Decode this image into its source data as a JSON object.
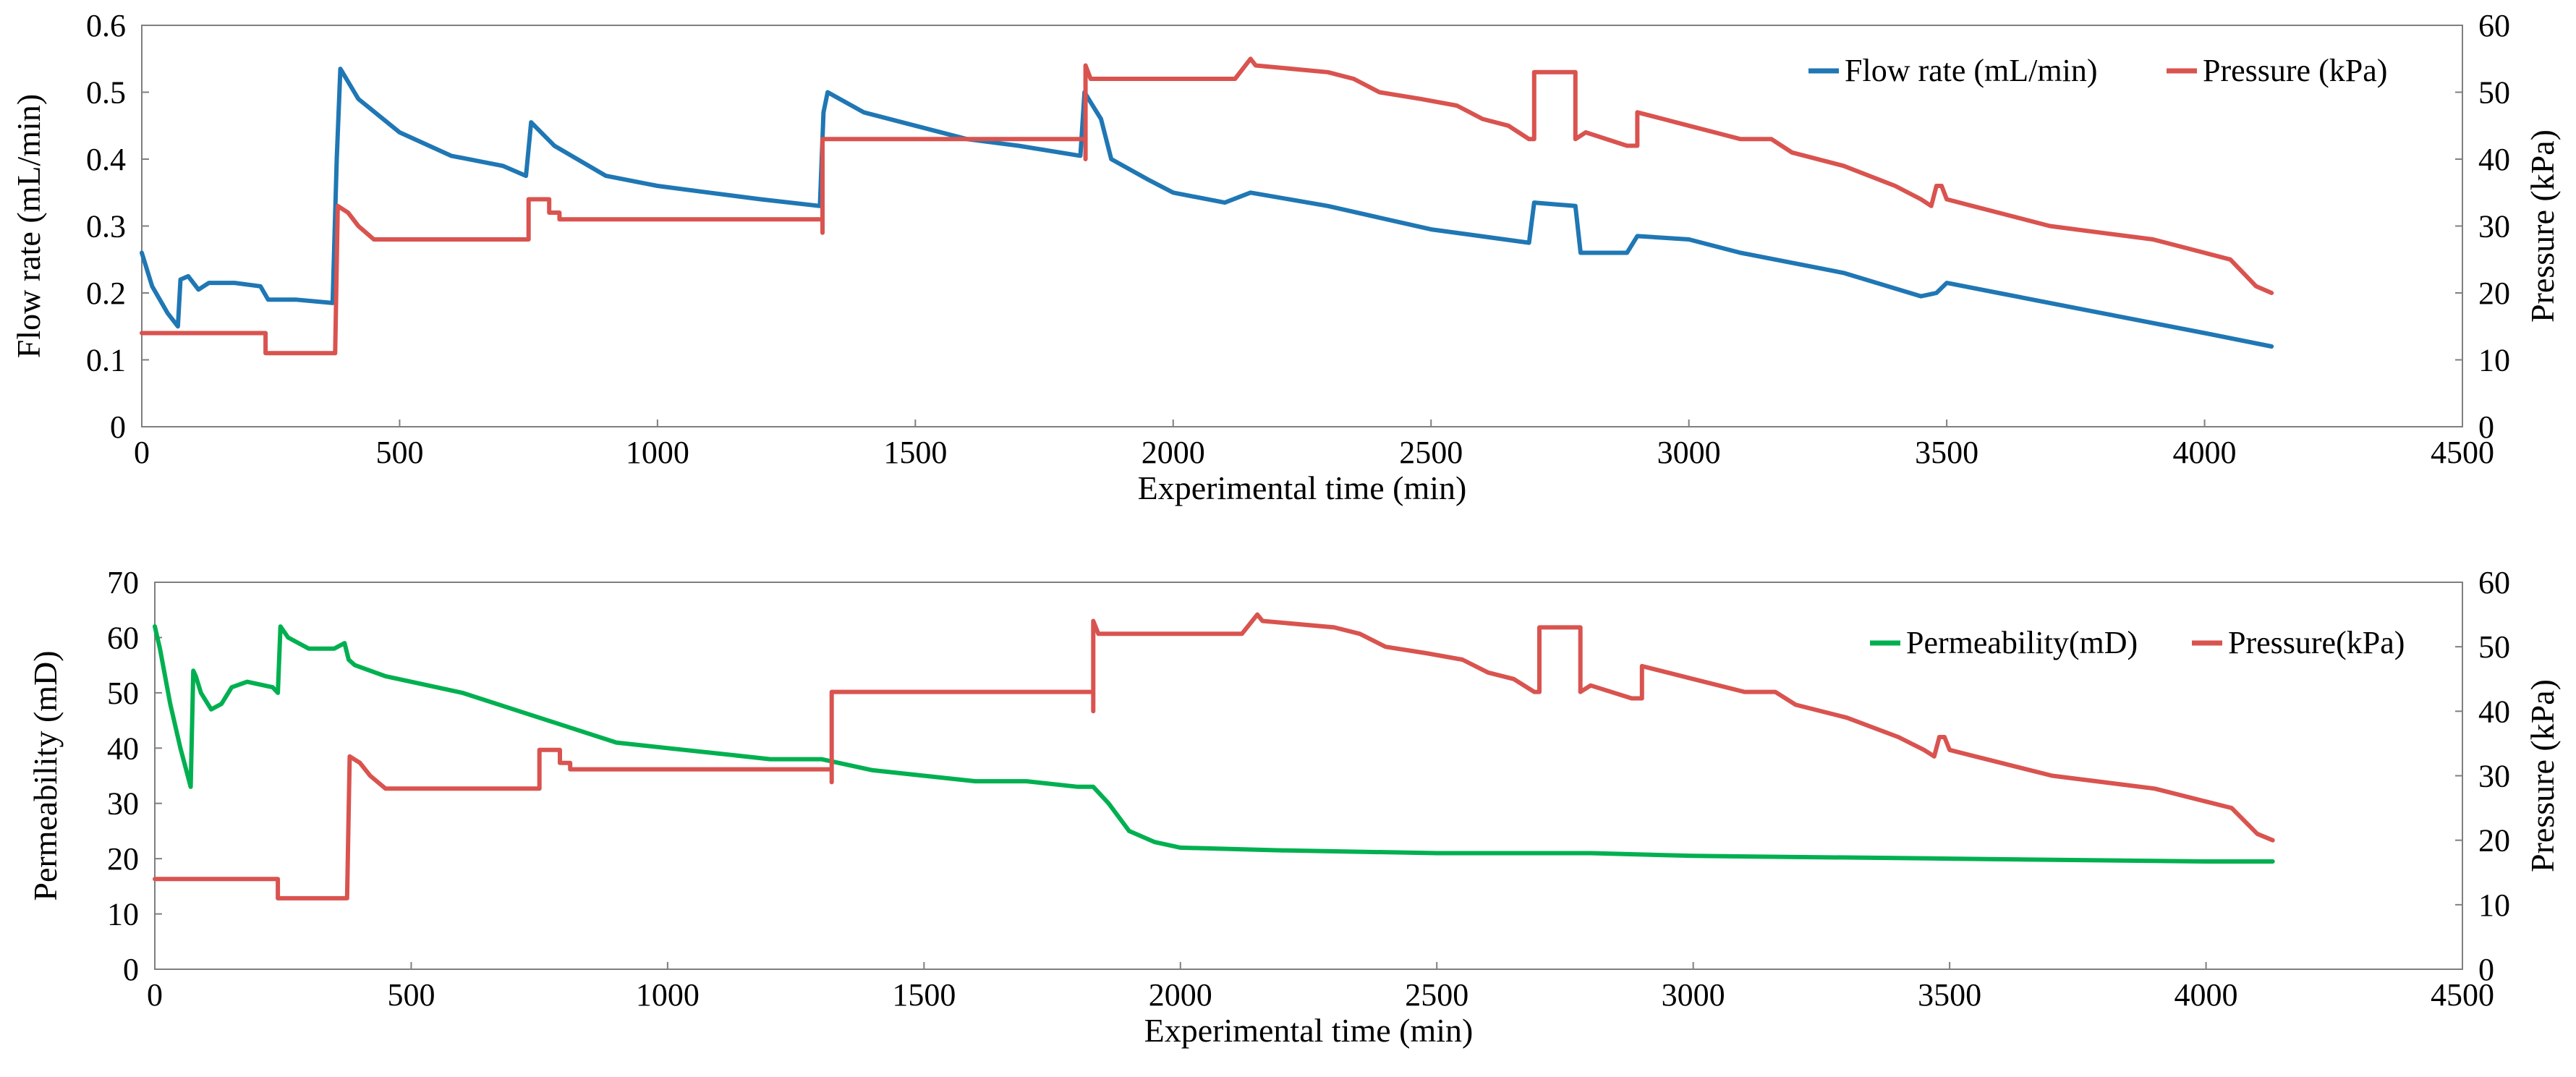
{
  "chart_data": [
    {
      "type": "line",
      "xlabel": "Experimental time (min)",
      "ylabel": "Flow rate (mL/min)",
      "y2label": "Pressure (kPa)",
      "xlim": [
        0,
        4500
      ],
      "ylim": [
        0,
        0.6
      ],
      "y2lim": [
        0,
        60
      ],
      "x_ticks": [
        "0",
        "500",
        "1000",
        "1500",
        "2000",
        "2500",
        "3000",
        "3500",
        "4000",
        "4500"
      ],
      "y_ticks": [
        "0",
        "0.1",
        "0.2",
        "0.3",
        "0.4",
        "0.5",
        "0.6"
      ],
      "y2_ticks": [
        "0",
        "10",
        "20",
        "30",
        "40",
        "50",
        "60"
      ],
      "legend_position": "top-right",
      "series": [
        {
          "name": "Flow rate (mL/min)",
          "axis": "left",
          "color": "#1f77b4",
          "points": [
            [
              0,
              0.26
            ],
            [
              20,
              0.21
            ],
            [
              50,
              0.17
            ],
            [
              70,
              0.15
            ],
            [
              75,
              0.22
            ],
            [
              90,
              0.225
            ],
            [
              110,
              0.205
            ],
            [
              130,
              0.215
            ],
            [
              180,
              0.215
            ],
            [
              230,
              0.21
            ],
            [
              245,
              0.19
            ],
            [
              300,
              0.19
            ],
            [
              370,
              0.185
            ],
            [
              378,
              0.4
            ],
            [
              385,
              0.535
            ],
            [
              420,
              0.49
            ],
            [
              500,
              0.44
            ],
            [
              600,
              0.405
            ],
            [
              700,
              0.39
            ],
            [
              745,
              0.375
            ],
            [
              755,
              0.455
            ],
            [
              800,
              0.42
            ],
            [
              900,
              0.375
            ],
            [
              1000,
              0.36
            ],
            [
              1100,
              0.35
            ],
            [
              1200,
              0.34
            ],
            [
              1315,
              0.33
            ],
            [
              1322,
              0.47
            ],
            [
              1330,
              0.5
            ],
            [
              1400,
              0.47
            ],
            [
              1500,
              0.45
            ],
            [
              1600,
              0.43
            ],
            [
              1700,
              0.42
            ],
            [
              1820,
              0.405
            ],
            [
              1828,
              0.5
            ],
            [
              1840,
              0.485
            ],
            [
              1860,
              0.46
            ],
            [
              1880,
              0.4
            ],
            [
              1950,
              0.37
            ],
            [
              2000,
              0.35
            ],
            [
              2100,
              0.335
            ],
            [
              2150,
              0.35
            ],
            [
              2300,
              0.33
            ],
            [
              2500,
              0.295
            ],
            [
              2690,
              0.275
            ],
            [
              2700,
              0.335
            ],
            [
              2780,
              0.33
            ],
            [
              2790,
              0.26
            ],
            [
              2880,
              0.26
            ],
            [
              2900,
              0.285
            ],
            [
              3000,
              0.28
            ],
            [
              3100,
              0.26
            ],
            [
              3300,
              0.23
            ],
            [
              3450,
              0.195
            ],
            [
              3480,
              0.2
            ],
            [
              3500,
              0.215
            ],
            [
              3600,
              0.2
            ],
            [
              3800,
              0.17
            ],
            [
              4000,
              0.14
            ],
            [
              4130,
              0.12
            ]
          ]
        },
        {
          "name": "Pressure (kPa)",
          "axis": "right",
          "color": "#d9534f",
          "points": [
            [
              0,
              14
            ],
            [
              240,
              14
            ],
            [
              240,
              11
            ],
            [
              375,
              11
            ],
            [
              380,
              33
            ],
            [
              400,
              32
            ],
            [
              420,
              30
            ],
            [
              450,
              28
            ],
            [
              750,
              28
            ],
            [
              750,
              34
            ],
            [
              790,
              34
            ],
            [
              790,
              32
            ],
            [
              810,
              32
            ],
            [
              810,
              31
            ],
            [
              1320,
              31
            ],
            [
              1320,
              29
            ],
            [
              1320,
              43
            ],
            [
              1830,
              43
            ],
            [
              1830,
              40
            ],
            [
              1830,
              54
            ],
            [
              1840,
              52
            ],
            [
              2120,
              52
            ],
            [
              2150,
              55
            ],
            [
              2160,
              54
            ],
            [
              2300,
              53
            ],
            [
              2350,
              52
            ],
            [
              2400,
              50
            ],
            [
              2480,
              49
            ],
            [
              2550,
              48
            ],
            [
              2600,
              46
            ],
            [
              2650,
              45
            ],
            [
              2690,
              43
            ],
            [
              2700,
              43
            ],
            [
              2700,
              53
            ],
            [
              2780,
              53
            ],
            [
              2780,
              43
            ],
            [
              2800,
              44
            ],
            [
              2880,
              42
            ],
            [
              2900,
              42
            ],
            [
              2900,
              47
            ],
            [
              2950,
              46
            ],
            [
              3000,
              45
            ],
            [
              3050,
              44
            ],
            [
              3100,
              43
            ],
            [
              3160,
              43
            ],
            [
              3200,
              41
            ],
            [
              3300,
              39
            ],
            [
              3400,
              36
            ],
            [
              3450,
              34
            ],
            [
              3470,
              33
            ],
            [
              3480,
              36
            ],
            [
              3490,
              36
            ],
            [
              3500,
              34
            ],
            [
              3550,
              33
            ],
            [
              3600,
              32
            ],
            [
              3700,
              30
            ],
            [
              3800,
              29
            ],
            [
              3900,
              28
            ],
            [
              4000,
              26
            ],
            [
              4050,
              25
            ],
            [
              4100,
              21
            ],
            [
              4130,
              20
            ]
          ]
        }
      ]
    },
    {
      "type": "line",
      "xlabel": "Experimental time (min)",
      "ylabel": "Permeability (mD)",
      "y2label": "Pressure (kPa)",
      "xlim": [
        0,
        4500
      ],
      "ylim": [
        0,
        70
      ],
      "y2lim": [
        0,
        60
      ],
      "x_ticks": [
        "0",
        "500",
        "1000",
        "1500",
        "2000",
        "2500",
        "3000",
        "3500",
        "4000",
        "4500"
      ],
      "y_ticks": [
        "0",
        "10",
        "20",
        "30",
        "40",
        "50",
        "60",
        "70"
      ],
      "y2_ticks": [
        "0",
        "10",
        "20",
        "30",
        "40",
        "50",
        "60"
      ],
      "legend_position": "top-right",
      "series": [
        {
          "name": "Permeability(mD)",
          "axis": "left",
          "color": "#00b050",
          "points": [
            [
              0,
              62
            ],
            [
              10,
              58
            ],
            [
              30,
              48
            ],
            [
              50,
              40
            ],
            [
              70,
              33
            ],
            [
              75,
              54
            ],
            [
              80,
              53
            ],
            [
              90,
              50
            ],
            [
              110,
              47
            ],
            [
              130,
              48
            ],
            [
              150,
              51
            ],
            [
              180,
              52
            ],
            [
              230,
              51
            ],
            [
              240,
              50
            ],
            [
              245,
              62
            ],
            [
              260,
              60
            ],
            [
              300,
              58
            ],
            [
              350,
              58
            ],
            [
              370,
              59
            ],
            [
              378,
              56
            ],
            [
              390,
              55
            ],
            [
              450,
              53
            ],
            [
              500,
              52
            ],
            [
              600,
              50
            ],
            [
              700,
              47
            ],
            [
              800,
              44
            ],
            [
              900,
              41
            ],
            [
              1000,
              40
            ],
            [
              1100,
              39
            ],
            [
              1200,
              38
            ],
            [
              1300,
              38
            ],
            [
              1400,
              36
            ],
            [
              1500,
              35
            ],
            [
              1600,
              34
            ],
            [
              1700,
              34
            ],
            [
              1800,
              33
            ],
            [
              1830,
              33
            ],
            [
              1860,
              30
            ],
            [
              1900,
              25
            ],
            [
              1950,
              23
            ],
            [
              2000,
              22
            ],
            [
              2200,
              21.5
            ],
            [
              2500,
              21
            ],
            [
              2800,
              21
            ],
            [
              3000,
              20.5
            ],
            [
              3500,
              20
            ],
            [
              4000,
              19.5
            ],
            [
              4130,
              19.5
            ]
          ]
        },
        {
          "name": "Pressure(kPa)",
          "axis": "right",
          "color": "#d9534f",
          "points": [
            [
              0,
              14
            ],
            [
              240,
              14
            ],
            [
              240,
              11
            ],
            [
              375,
              11
            ],
            [
              380,
              33
            ],
            [
              400,
              32
            ],
            [
              420,
              30
            ],
            [
              450,
              28
            ],
            [
              750,
              28
            ],
            [
              750,
              34
            ],
            [
              790,
              34
            ],
            [
              790,
              32
            ],
            [
              810,
              32
            ],
            [
              810,
              31
            ],
            [
              1320,
              31
            ],
            [
              1320,
              29
            ],
            [
              1320,
              43
            ],
            [
              1830,
              43
            ],
            [
              1830,
              40
            ],
            [
              1830,
              54
            ],
            [
              1840,
              52
            ],
            [
              2120,
              52
            ],
            [
              2150,
              55
            ],
            [
              2160,
              54
            ],
            [
              2300,
              53
            ],
            [
              2350,
              52
            ],
            [
              2400,
              50
            ],
            [
              2480,
              49
            ],
            [
              2550,
              48
            ],
            [
              2600,
              46
            ],
            [
              2650,
              45
            ],
            [
              2690,
              43
            ],
            [
              2700,
              43
            ],
            [
              2700,
              53
            ],
            [
              2780,
              53
            ],
            [
              2780,
              43
            ],
            [
              2800,
              44
            ],
            [
              2880,
              42
            ],
            [
              2900,
              42
            ],
            [
              2900,
              47
            ],
            [
              2950,
              46
            ],
            [
              3000,
              45
            ],
            [
              3050,
              44
            ],
            [
              3100,
              43
            ],
            [
              3160,
              43
            ],
            [
              3200,
              41
            ],
            [
              3300,
              39
            ],
            [
              3400,
              36
            ],
            [
              3450,
              34
            ],
            [
              3470,
              33
            ],
            [
              3480,
              36
            ],
            [
              3490,
              36
            ],
            [
              3500,
              34
            ],
            [
              3550,
              33
            ],
            [
              3600,
              32
            ],
            [
              3700,
              30
            ],
            [
              3800,
              29
            ],
            [
              3900,
              28
            ],
            [
              4000,
              26
            ],
            [
              4050,
              25
            ],
            [
              4100,
              21
            ],
            [
              4130,
              20
            ]
          ]
        }
      ]
    }
  ]
}
